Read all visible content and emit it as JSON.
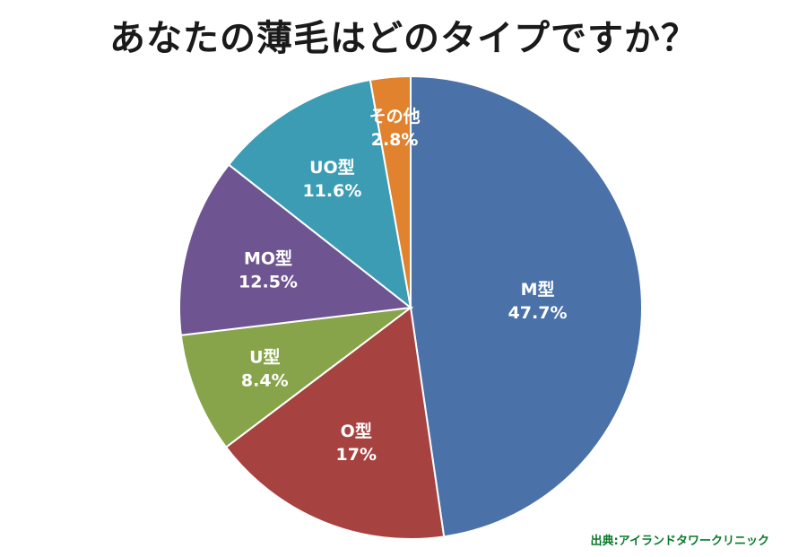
{
  "chart_data": {
    "type": "pie",
    "title": "あなたの薄毛はどのタイプですか？",
    "start_angle_deg": 0,
    "direction": "clockwise",
    "slices": [
      {
        "name": "M型",
        "value": 47.7,
        "value_label": "47.7%",
        "color": "#4a72a8"
      },
      {
        "name": "O型",
        "value": 17,
        "value_label": "17%",
        "color": "#a6423f"
      },
      {
        "name": "U型",
        "value": 8.4,
        "value_label": "8.4%",
        "color": "#88a44a"
      },
      {
        "name": "MO型",
        "value": 12.5,
        "value_label": "12.5%",
        "color": "#6e5591"
      },
      {
        "name": "UO型",
        "value": 11.6,
        "value_label": "11.6%",
        "color": "#3c9cb4"
      },
      {
        "name": "その他",
        "value": 2.8,
        "value_label": "2.8%",
        "color": "#e0822e"
      }
    ]
  },
  "source_note": "出典:アイランドタワークリニック"
}
